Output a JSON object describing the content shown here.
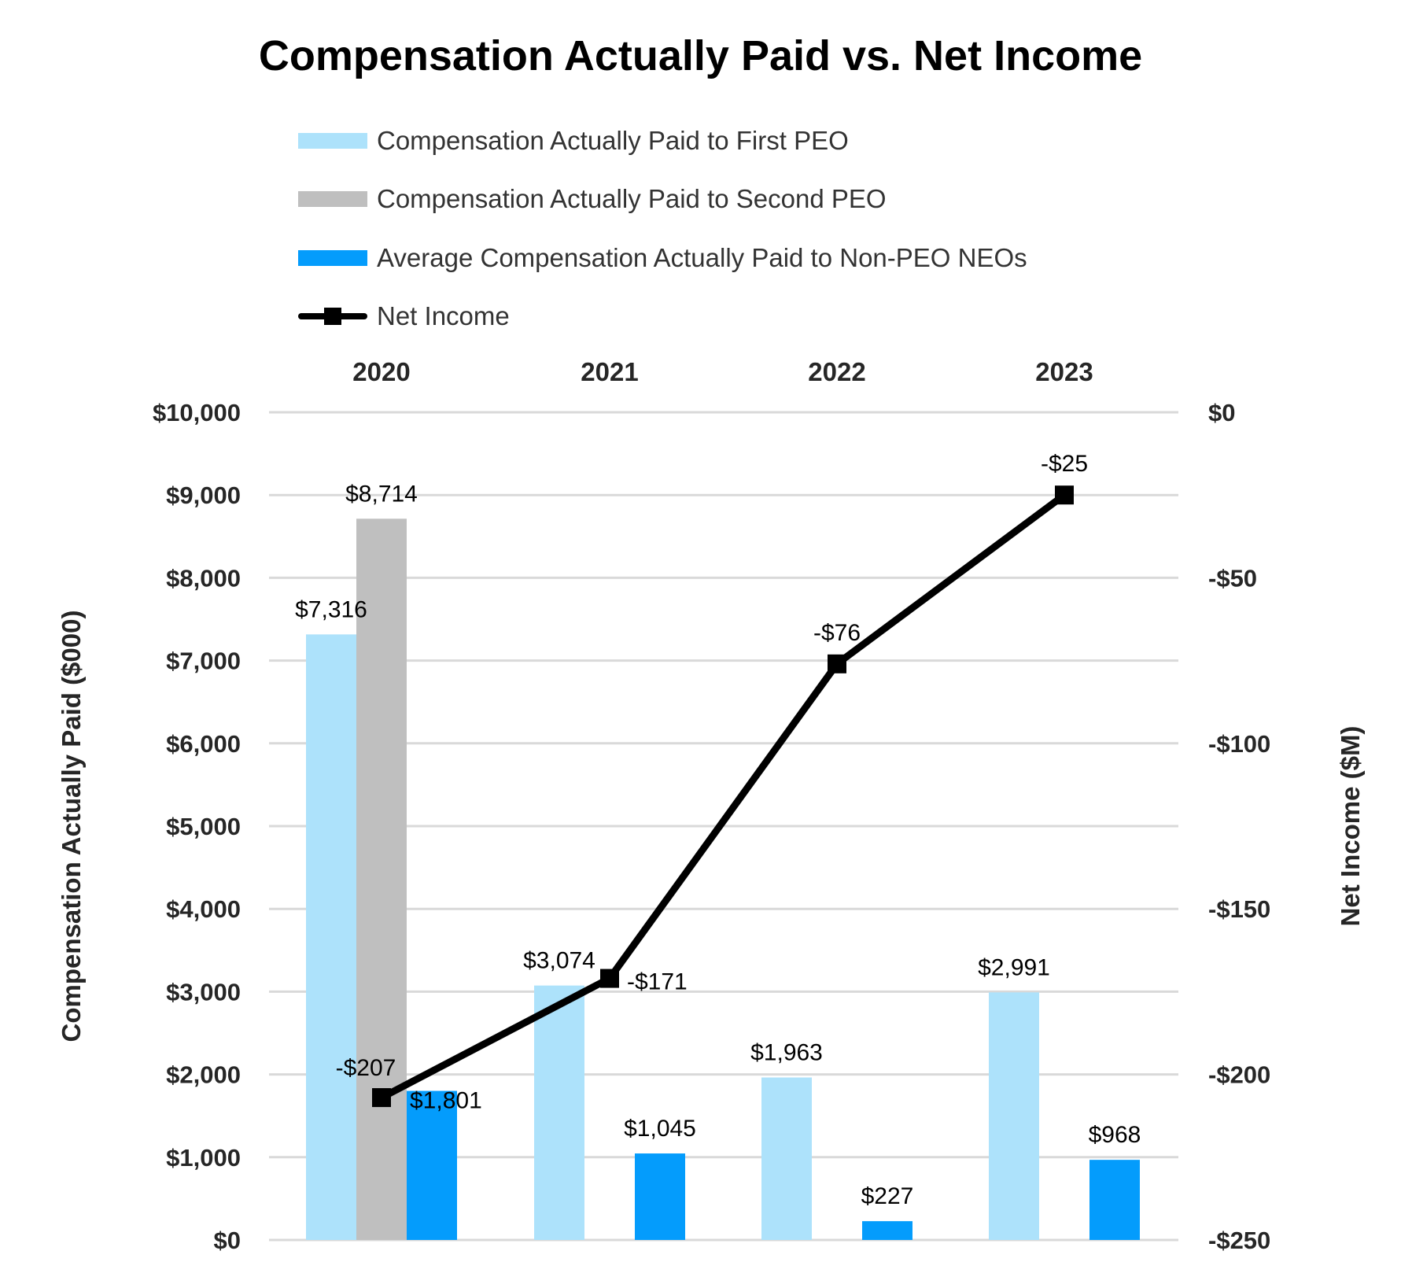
{
  "chart_data": {
    "type": "bar",
    "title": "Compensation Actually Paid vs. Net Income",
    "categories": [
      "2020",
      "2021",
      "2022",
      "2023"
    ],
    "ylabel": "Compensation Actually Paid ($000)",
    "y2label": "Net Income ($M)",
    "ylim": [
      0,
      10000
    ],
    "y2lim": [
      -250,
      0
    ],
    "yticks": [
      "$0",
      "$1,000",
      "$2,000",
      "$3,000",
      "$4,000",
      "$5,000",
      "$6,000",
      "$7,000",
      "$8,000",
      "$9,000",
      "$10,000"
    ],
    "y2ticks": [
      "-$250",
      "-$200",
      "-$150",
      "-$100",
      "-$50",
      "$0"
    ],
    "grid": true,
    "legend_position": "top",
    "series": [
      {
        "name": "Compensation Actually Paid to First PEO",
        "type": "bar",
        "color": "#ade2fb",
        "values": [
          7316,
          3074,
          1963,
          2991
        ],
        "labels": [
          "$7,316",
          "$3,074",
          "$1,963",
          "$2,991"
        ]
      },
      {
        "name": "Compensation Actually Paid to Second PEO",
        "type": "bar",
        "color": "#bfbfbf",
        "values": [
          8714,
          null,
          null,
          null
        ],
        "labels": [
          "$8,714",
          null,
          null,
          null
        ]
      },
      {
        "name": "Average Compensation Actually Paid to Non-PEO NEOs",
        "type": "bar",
        "color": "#049cfc",
        "values": [
          1801,
          1045,
          227,
          968
        ],
        "labels": [
          "$1,801",
          "$1,045",
          "$227",
          "$968"
        ]
      },
      {
        "name": "Net Income",
        "type": "line",
        "axis": "right",
        "color": "#000000",
        "marker": "square",
        "values": [
          -207,
          -171,
          -76,
          -25
        ],
        "labels": [
          "-$207",
          "-$171",
          "-$76",
          "-$25"
        ]
      }
    ]
  }
}
